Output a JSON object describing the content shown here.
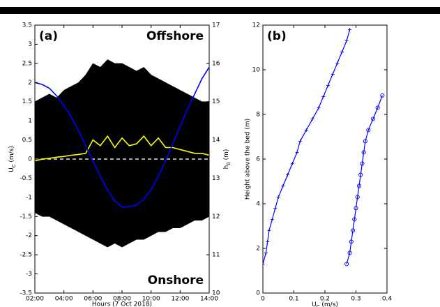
{
  "chart_data": [
    {
      "type": "line",
      "panel_label": "(a)",
      "annotations": [
        "Offshore",
        "Onshore"
      ],
      "xlabel": "Hours (7 Oct 2018)",
      "ylabel": "U_C (m/s)",
      "y2label": "h_0 (m)",
      "xlim": [
        2,
        14
      ],
      "xticks": [
        {
          "value": 2,
          "label": "02:00"
        },
        {
          "value": 4,
          "label": "04:00"
        },
        {
          "value": 6,
          "label": "06:00"
        },
        {
          "value": 8,
          "label": "08:00"
        },
        {
          "value": 10,
          "label": "10:00"
        },
        {
          "value": 12,
          "label": "12:00"
        },
        {
          "value": 14,
          "label": "14:00"
        }
      ],
      "ylim": [
        -3.5,
        3.5
      ],
      "yticks": [
        -3.5,
        -3,
        -2.5,
        -2,
        -1.5,
        -1,
        -0.5,
        0,
        0.5,
        1,
        1.5,
        2,
        2.5,
        3,
        3.5
      ],
      "y2lim": [
        10,
        17
      ],
      "y2ticks": [
        10,
        11,
        12,
        13,
        14,
        15,
        16,
        17
      ],
      "reference_line": {
        "value": 0,
        "color": "#aaaaaa"
      },
      "x": [
        2,
        2.5,
        3,
        3.5,
        4,
        4.5,
        5,
        5.5,
        6,
        6.5,
        7,
        7.5,
        8,
        8.5,
        9,
        9.5,
        10,
        10.5,
        11,
        11.5,
        12,
        12.5,
        13,
        13.5,
        14
      ],
      "series": [
        {
          "kind": "area",
          "color": "#000000",
          "values": [
            1.5,
            1.6,
            1.7,
            1.6,
            1.8,
            1.9,
            2.0,
            2.2,
            2.5,
            2.4,
            2.6,
            2.5,
            2.5,
            2.4,
            2.3,
            2.4,
            2.2,
            2.1,
            2.0,
            1.9,
            1.8,
            1.7,
            1.6,
            1.5,
            1.5
          ]
        },
        {
          "kind": "area",
          "color": "#000000",
          "values": [
            -1.4,
            -1.5,
            -1.5,
            -1.6,
            -1.7,
            -1.8,
            -1.9,
            -2.0,
            -2.1,
            -2.2,
            -2.3,
            -2.2,
            -2.3,
            -2.2,
            -2.1,
            -2.1,
            -2.0,
            -1.9,
            -1.9,
            -1.8,
            -1.8,
            -1.7,
            -1.6,
            -1.6,
            -1.5
          ]
        },
        {
          "kind": "line",
          "color": "#ffff00",
          "values": [
            -0.05,
            0.0,
            0.02,
            0.05,
            0.07,
            0.1,
            0.12,
            0.15,
            0.5,
            0.35,
            0.6,
            0.3,
            0.55,
            0.35,
            0.4,
            0.6,
            0.35,
            0.55,
            0.3,
            0.3,
            0.25,
            0.2,
            0.15,
            0.15,
            0.1
          ]
        },
        {
          "kind": "line",
          "color": "#0000ff",
          "axis": "y2",
          "values": [
            15.5,
            15.45,
            15.35,
            15.15,
            14.9,
            14.6,
            14.25,
            13.85,
            13.45,
            13.05,
            12.7,
            12.4,
            12.25,
            12.25,
            12.3,
            12.45,
            12.7,
            13.05,
            13.45,
            13.9,
            14.35,
            14.8,
            15.2,
            15.6,
            15.9
          ]
        }
      ]
    },
    {
      "type": "line",
      "panel_label": "(b)",
      "xlabel": "U_C (m/s)",
      "ylabel": "Height above the bed (m)",
      "xlim": [
        0,
        0.4
      ],
      "xticks": [
        0,
        0.1,
        0.2,
        0.3,
        0.4
      ],
      "ylim": [
        0,
        12
      ],
      "yticks": [
        0,
        2,
        4,
        6,
        8,
        10,
        12
      ],
      "series": [
        {
          "kind": "line",
          "marker": "+",
          "color": "#0000ff",
          "x": [
            0.0,
            0.01,
            0.015,
            0.02,
            0.03,
            0.04,
            0.05,
            0.065,
            0.08,
            0.095,
            0.11,
            0.12,
            0.14,
            0.16,
            0.18,
            0.195,
            0.21,
            0.225,
            0.24,
            0.255,
            0.27,
            0.28
          ],
          "values": [
            1.3,
            1.8,
            2.3,
            2.8,
            3.3,
            3.8,
            4.3,
            4.8,
            5.3,
            5.8,
            6.3,
            6.8,
            7.3,
            7.8,
            8.3,
            8.8,
            9.3,
            9.8,
            10.3,
            10.8,
            11.3,
            11.8
          ]
        },
        {
          "kind": "line",
          "marker": "o",
          "color": "#0000ff",
          "x": [
            0.27,
            0.28,
            0.285,
            0.29,
            0.295,
            0.3,
            0.305,
            0.31,
            0.315,
            0.32,
            0.325,
            0.33,
            0.34,
            0.355,
            0.37,
            0.385
          ],
          "values": [
            1.3,
            1.8,
            2.3,
            2.8,
            3.3,
            3.8,
            4.3,
            4.8,
            5.3,
            5.8,
            6.3,
            6.8,
            7.3,
            7.8,
            8.3,
            8.85
          ]
        }
      ]
    }
  ]
}
